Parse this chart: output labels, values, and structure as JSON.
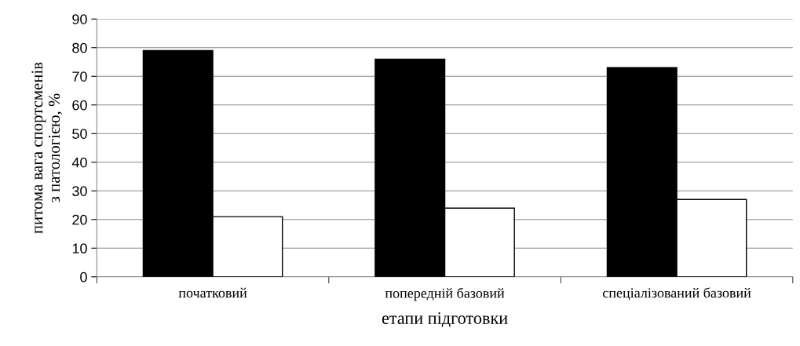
{
  "chart_data": {
    "type": "bar",
    "xlabel": "етапи підготовки",
    "ylabel": "питома вага спортсменів\nз патологією, %",
    "categories": [
      "початковий",
      "попередній базовий",
      "спеціалізований базовий"
    ],
    "series": [
      {
        "color": "#000000",
        "values": [
          79,
          76,
          73
        ]
      },
      {
        "color": "#ffffff",
        "values": [
          21,
          24,
          27
        ]
      }
    ],
    "ylim": [
      0,
      90
    ],
    "yticks": [
      0,
      10,
      20,
      30,
      40,
      50,
      60,
      70,
      80,
      90
    ],
    "grid": "y",
    "legend": false
  }
}
